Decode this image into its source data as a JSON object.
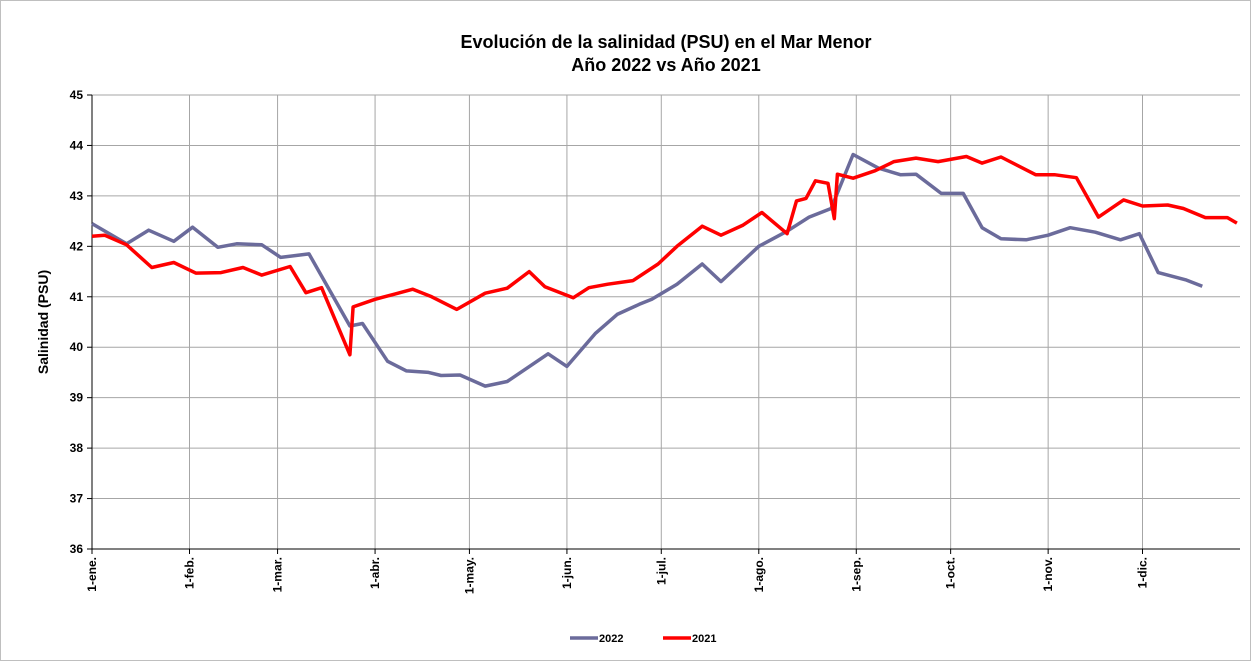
{
  "chart_data": {
    "type": "line",
    "title": "Evolución de la salinidad (PSU) en el Mar Menor",
    "subtitle": "Año 2022 vs Año 2021",
    "y_label": "Salinidad (PSU)",
    "xlim": [
      0,
      365
    ],
    "xticks": [
      {
        "value": 0,
        "label": "1-ene."
      },
      {
        "value": 31,
        "label": "1-feb."
      },
      {
        "value": 59,
        "label": "1-mar."
      },
      {
        "value": 90,
        "label": "1-abr."
      },
      {
        "value": 120,
        "label": "1-may."
      },
      {
        "value": 151,
        "label": "1-jun."
      },
      {
        "value": 181,
        "label": "1-jul."
      },
      {
        "value": 212,
        "label": "1-ago."
      },
      {
        "value": 243,
        "label": "1-sep."
      },
      {
        "value": 273,
        "label": "1-oct."
      },
      {
        "value": 304,
        "label": "1-nov."
      },
      {
        "value": 334,
        "label": "1-dic."
      }
    ],
    "ylim": [
      36,
      45
    ],
    "yticks": [
      36,
      37,
      38,
      39,
      40,
      41,
      42,
      43,
      44,
      45
    ],
    "grid": true,
    "legend": "bottom",
    "series": [
      {
        "name": "2022",
        "color": "#6b6b9b",
        "x": [
          0,
          11,
          18,
          26,
          32,
          40,
          46,
          54,
          60,
          69,
          82,
          86,
          94,
          100,
          107,
          111,
          117,
          125,
          132,
          145,
          151,
          160,
          167,
          174,
          178,
          186,
          194,
          200,
          212,
          221,
          228,
          235,
          242,
          250,
          257,
          262,
          270,
          277,
          283,
          289,
          297,
          304,
          311,
          319,
          327,
          333,
          339,
          348,
          353
        ],
        "values": [
          42.45,
          42.05,
          42.32,
          42.1,
          42.38,
          41.98,
          42.05,
          42.03,
          41.78,
          41.85,
          40.42,
          40.47,
          39.72,
          39.53,
          39.5,
          39.44,
          39.45,
          39.23,
          39.32,
          39.87,
          39.62,
          40.27,
          40.65,
          40.85,
          40.95,
          41.25,
          41.65,
          41.3,
          42.0,
          42.3,
          42.58,
          42.75,
          43.82,
          43.55,
          43.42,
          43.43,
          43.05,
          43.05,
          42.37,
          42.15,
          42.13,
          42.22,
          42.37,
          42.28,
          42.13,
          42.25,
          41.48,
          41.33,
          41.21
        ]
      },
      {
        "name": "2021",
        "color": "#ff0000",
        "x": [
          0,
          4,
          11,
          19,
          26,
          33,
          41,
          48,
          54,
          63,
          68,
          73,
          82,
          83,
          90,
          96,
          102,
          108,
          116,
          125,
          132,
          139,
          144,
          153,
          158,
          164,
          172,
          180,
          186,
          194,
          200,
          207,
          213,
          221,
          224,
          227,
          230,
          234,
          236,
          237,
          242,
          249,
          255,
          262,
          269,
          278,
          283,
          289,
          300,
          306,
          313,
          320,
          328,
          334,
          342,
          347,
          354,
          361,
          364
        ],
        "values": [
          42.2,
          42.22,
          42.03,
          41.58,
          41.68,
          41.47,
          41.48,
          41.58,
          41.43,
          41.6,
          41.08,
          41.18,
          39.85,
          40.8,
          40.95,
          41.05,
          41.15,
          41.0,
          40.75,
          41.07,
          41.17,
          41.5,
          41.2,
          40.98,
          41.18,
          41.25,
          41.32,
          41.65,
          42.0,
          42.4,
          42.22,
          42.42,
          42.67,
          42.25,
          42.9,
          42.95,
          43.3,
          43.25,
          42.55,
          43.43,
          43.35,
          43.5,
          43.68,
          43.75,
          43.68,
          43.78,
          43.65,
          43.77,
          43.42,
          43.42,
          43.36,
          42.58,
          42.92,
          42.8,
          42.82,
          42.75,
          42.57,
          42.57,
          42.46
        ]
      }
    ]
  }
}
